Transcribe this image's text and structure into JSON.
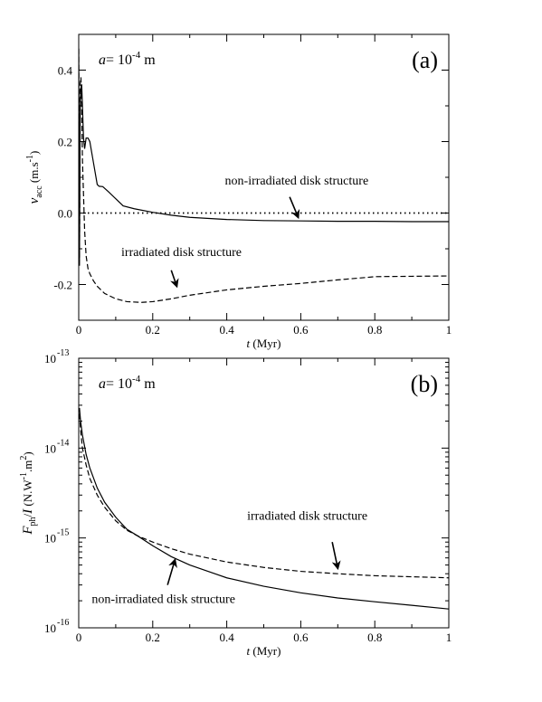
{
  "chart_data": [
    {
      "type": "line",
      "panel_label": "(a)",
      "parameter": {
        "symbol": "a",
        "eq": "= 10",
        "exp": "-4",
        "unit": " m"
      },
      "xlabel": {
        "symbol": "t",
        "unit": " (Myr)"
      },
      "ylabel": {
        "symbol": "v",
        "sub": "acc",
        "unit": " (m.s",
        "exp": "-1",
        "close": ")"
      },
      "xlim": [
        0,
        1
      ],
      "ylim": [
        -0.3,
        0.5
      ],
      "xticks": [
        0,
        0.2,
        0.4,
        0.6,
        0.8,
        1
      ],
      "xtick_labels": [
        "0",
        "0.2",
        "0.4",
        "0.6",
        "0.8",
        "1"
      ],
      "yticks": [
        -0.2,
        0,
        0.2,
        0.4
      ],
      "ytick_labels": [
        "-0.2",
        "0.0",
        "0.2",
        "0.4"
      ],
      "grid": false,
      "series": [
        {
          "name": "non-irradiated disk structure",
          "style": "solid",
          "x": [
            0.0,
            0.002,
            0.004,
            0.006,
            0.008,
            0.01,
            0.013,
            0.016,
            0.02,
            0.025,
            0.03,
            0.04,
            0.05,
            0.055,
            0.065,
            0.08,
            0.1,
            0.12,
            0.15,
            0.2,
            0.25,
            0.3,
            0.4,
            0.5,
            0.6,
            0.7,
            0.8,
            0.9,
            1.0
          ],
          "y": [
            0.46,
            -0.13,
            0.3,
            0.35,
            0.36,
            0.3,
            0.21,
            0.18,
            0.21,
            0.21,
            0.2,
            0.14,
            0.08,
            0.075,
            0.074,
            0.06,
            0.04,
            0.02,
            0.012,
            0.002,
            -0.006,
            -0.012,
            -0.018,
            -0.021,
            -0.022,
            -0.023,
            -0.023,
            -0.024,
            -0.024
          ]
        },
        {
          "name": "irradiated disk structure",
          "style": "dashed",
          "x": [
            0.0,
            0.002,
            0.004,
            0.006,
            0.008,
            0.01,
            0.013,
            0.016,
            0.02,
            0.025,
            0.03,
            0.04,
            0.05,
            0.07,
            0.1,
            0.13,
            0.17,
            0.2,
            0.25,
            0.3,
            0.4,
            0.5,
            0.6,
            0.7,
            0.78,
            0.8,
            0.9,
            1.0
          ],
          "y": [
            0.46,
            -0.15,
            0.36,
            0.38,
            0.3,
            0.15,
            0.05,
            -0.05,
            -0.12,
            -0.155,
            -0.17,
            -0.19,
            -0.205,
            -0.225,
            -0.24,
            -0.248,
            -0.25,
            -0.248,
            -0.24,
            -0.23,
            -0.215,
            -0.205,
            -0.197,
            -0.187,
            -0.18,
            -0.178,
            -0.177,
            -0.176
          ]
        },
        {
          "name": "zero reference",
          "style": "dotted",
          "x": [
            0,
            1
          ],
          "y": [
            0,
            0
          ]
        }
      ],
      "annotations": [
        {
          "text": "non-irradiated disk structure",
          "tx": 0.395,
          "ty": 0.08,
          "ax": 0.57,
          "ay": 0.045,
          "hx": 0.593,
          "hy": -0.012
        },
        {
          "text": "irradiated disk structure",
          "tx": 0.115,
          "ty": -0.12,
          "ax": 0.25,
          "ay": -0.16,
          "hx": 0.265,
          "hy": -0.205
        }
      ]
    },
    {
      "type": "line",
      "panel_label": "(b)",
      "parameter": {
        "symbol": "a",
        "eq": "= 10",
        "exp": "-4",
        "unit": " m"
      },
      "xlabel": {
        "symbol": "t",
        "unit": " (Myr)"
      },
      "ylabel": {
        "symbol": "F",
        "sub": "ph",
        "mid": "/",
        "symbol2": "I",
        "unit": " (N.W",
        "exp": "-1",
        "unit2": ".m",
        "exp2": "2",
        "close": ")"
      },
      "xlim": [
        0,
        1
      ],
      "ylim": [
        1e-16,
        1e-13
      ],
      "log_y": true,
      "xticks": [
        0,
        0.2,
        0.4,
        0.6,
        0.8,
        1
      ],
      "xtick_labels": [
        "0",
        "0.2",
        "0.4",
        "0.6",
        "0.8",
        "1"
      ],
      "yticks": [
        1e-16,
        1e-15,
        1e-14,
        1e-13
      ],
      "ytick_labels": [
        {
          "base": "10",
          "exp": "-16"
        },
        {
          "base": "10",
          "exp": "-15"
        },
        {
          "base": "10",
          "exp": "-14"
        },
        {
          "base": "10",
          "exp": "-13"
        }
      ],
      "grid": false,
      "series": [
        {
          "name": "non-irradiated disk structure",
          "style": "solid",
          "x": [
            0.002,
            0.005,
            0.01,
            0.02,
            0.03,
            0.05,
            0.07,
            0.1,
            0.13,
            0.16,
            0.2,
            0.25,
            0.3,
            0.4,
            0.5,
            0.6,
            0.7,
            0.8,
            0.9,
            1.0
          ],
          "y": [
            2.8e-14,
            2e-14,
            1.4e-14,
            8.5e-15,
            6e-15,
            3.6e-15,
            2.5e-15,
            1.7e-15,
            1.25e-15,
            1.05e-15,
            8.2e-16,
            6.2e-16,
            5e-16,
            3.6e-16,
            2.9e-16,
            2.45e-16,
            2.15e-16,
            1.95e-16,
            1.78e-16,
            1.62e-16
          ]
        },
        {
          "name": "irradiated disk structure",
          "style": "dashed",
          "x": [
            0.002,
            0.005,
            0.01,
            0.02,
            0.03,
            0.05,
            0.07,
            0.1,
            0.13,
            0.16,
            0.2,
            0.25,
            0.3,
            0.4,
            0.5,
            0.6,
            0.7,
            0.8,
            0.9,
            1.0
          ],
          "y": [
            2.4e-14,
            1.6e-14,
            1e-14,
            6.5e-15,
            4.6e-15,
            3e-15,
            2.2e-15,
            1.55e-15,
            1.22e-15,
            1.05e-15,
            9e-16,
            7.6e-16,
            6.6e-16,
            5.4e-16,
            4.7e-16,
            4.25e-16,
            4e-16,
            3.8e-16,
            3.7e-16,
            3.6e-16
          ]
        }
      ],
      "annotations": [
        {
          "text": "irradiated disk structure",
          "tx": 0.455,
          "ty": 1.6e-15,
          "ax": 0.685,
          "ay": 9e-16,
          "hx": 0.7,
          "hy": 4.6e-16
        },
        {
          "text": "non-irradiated disk structure",
          "tx": 0.035,
          "ty": 1.9e-16,
          "ax": 0.24,
          "ay": 3e-16,
          "hx": 0.26,
          "hy": 5.7e-16
        }
      ]
    }
  ]
}
